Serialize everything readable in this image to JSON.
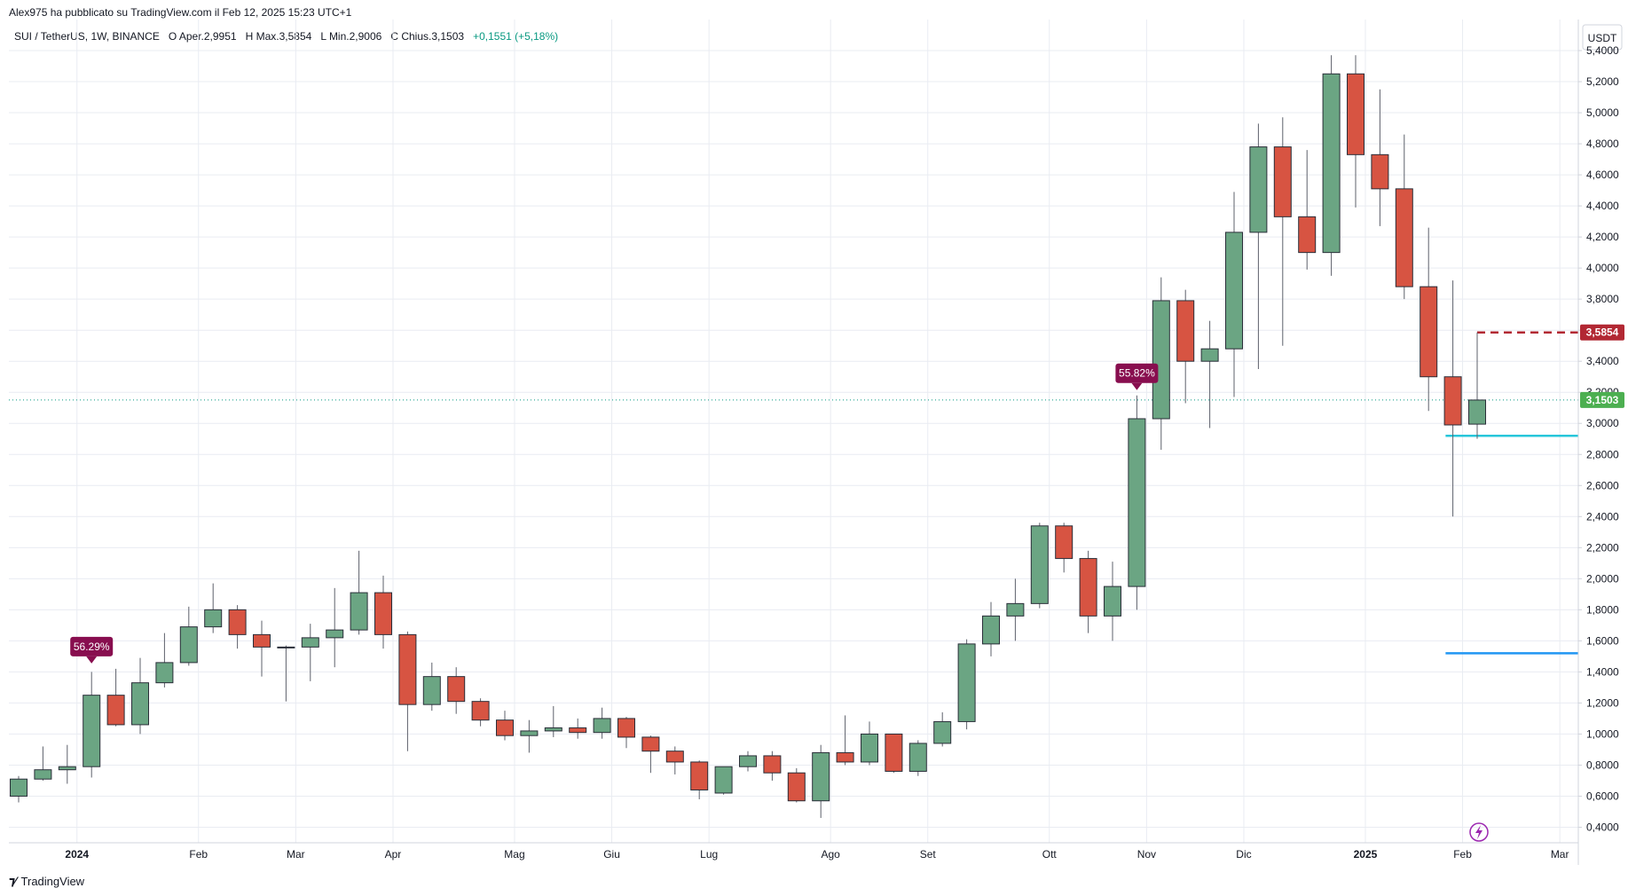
{
  "header": {
    "caption": "Alex975 ha pubblicato su TradingView.com il Feb 12, 2025 15:23 UTC+1",
    "symbol": "SUI / TetherUS, 1W, BINANCE",
    "o_label": "O",
    "o_value": "Aper.2,9951",
    "h_label": "H",
    "h_value": "Max.3,5854",
    "l_label": "L",
    "l_value": "Min.2,9006",
    "c_label": "C",
    "c_value": "Chius.3,1503",
    "change": "+0,1551 (+5,18%)"
  },
  "footer": {
    "logo_text": "TradingView"
  },
  "colors": {
    "up": "#6ba583",
    "down": "#d75442",
    "wick": "#5d606b",
    "grid": "#e9ecf2",
    "badge": "#880e4f",
    "cyan_line": "#26c6da",
    "blue_line": "#2196f3",
    "red_dash": "#b22833",
    "price_tag_up": "#4caf50"
  },
  "chart_data": {
    "type": "candlestick",
    "title": "SUI / TetherUS, 1W, BINANCE",
    "currency_label": "USDT",
    "y_ticks": [
      "0,4000",
      "0,6000",
      "0,8000",
      "1,0000",
      "1,2000",
      "1,4000",
      "1,6000",
      "1,8000",
      "2,0000",
      "2,2000",
      "2,4000",
      "2,6000",
      "2,8000",
      "3,0000",
      "3,2000",
      "3,4000",
      "3,6000",
      "3,8000",
      "4,0000",
      "4,2000",
      "4,4000",
      "4,6000",
      "4,8000",
      "5,0000",
      "5,2000",
      "5,4000"
    ],
    "y_tick_values": [
      0.4,
      0.6,
      0.8,
      1.0,
      1.2,
      1.4,
      1.6,
      1.8,
      2.0,
      2.2,
      2.4,
      2.6,
      2.8,
      3.0,
      3.2,
      3.4,
      3.6,
      3.8,
      4.0,
      4.2,
      4.4,
      4.6,
      4.8,
      5.0,
      5.2,
      5.4
    ],
    "ylim": [
      0.3,
      5.6
    ],
    "x_ticks": [
      "2024",
      "Feb",
      "Mar",
      "Apr",
      "Mag",
      "Giu",
      "Lug",
      "Ago",
      "Set",
      "Ott",
      "Nov",
      "Dic",
      "2025",
      "Feb",
      "Mar"
    ],
    "x_tick_week_index": [
      2.4,
      7.4,
      11.4,
      15.4,
      20.4,
      24.4,
      28.4,
      33.4,
      37.4,
      42.4,
      46.4,
      50.4,
      55.4,
      59.4,
      63.4
    ],
    "candles": [
      {
        "o": 0.6,
        "h": 0.73,
        "l": 0.56,
        "c": 0.71
      },
      {
        "o": 0.71,
        "h": 0.92,
        "l": 0.7,
        "c": 0.77
      },
      {
        "o": 0.77,
        "h": 0.93,
        "l": 0.68,
        "c": 0.79
      },
      {
        "o": 0.79,
        "h": 1.4,
        "l": 0.72,
        "c": 1.25
      },
      {
        "o": 1.25,
        "h": 1.42,
        "l": 1.05,
        "c": 1.06
      },
      {
        "o": 1.06,
        "h": 1.49,
        "l": 1.0,
        "c": 1.33
      },
      {
        "o": 1.33,
        "h": 1.65,
        "l": 1.3,
        "c": 1.46
      },
      {
        "o": 1.46,
        "h": 1.82,
        "l": 1.44,
        "c": 1.69
      },
      {
        "o": 1.69,
        "h": 1.97,
        "l": 1.65,
        "c": 1.8
      },
      {
        "o": 1.8,
        "h": 1.83,
        "l": 1.55,
        "c": 1.64
      },
      {
        "o": 1.64,
        "h": 1.73,
        "l": 1.37,
        "c": 1.56
      },
      {
        "o": 1.56,
        "h": 1.57,
        "l": 1.21,
        "c": 1.56
      },
      {
        "o": 1.56,
        "h": 1.71,
        "l": 1.34,
        "c": 1.62
      },
      {
        "o": 1.62,
        "h": 1.94,
        "l": 1.43,
        "c": 1.67
      },
      {
        "o": 1.67,
        "h": 2.18,
        "l": 1.64,
        "c": 1.91
      },
      {
        "o": 1.91,
        "h": 2.02,
        "l": 1.55,
        "c": 1.64
      },
      {
        "o": 1.64,
        "h": 1.66,
        "l": 0.89,
        "c": 1.19
      },
      {
        "o": 1.19,
        "h": 1.46,
        "l": 1.15,
        "c": 1.37
      },
      {
        "o": 1.37,
        "h": 1.43,
        "l": 1.13,
        "c": 1.21
      },
      {
        "o": 1.21,
        "h": 1.23,
        "l": 1.05,
        "c": 1.09
      },
      {
        "o": 1.09,
        "h": 1.15,
        "l": 0.96,
        "c": 0.99
      },
      {
        "o": 0.99,
        "h": 1.09,
        "l": 0.88,
        "c": 1.02
      },
      {
        "o": 1.02,
        "h": 1.18,
        "l": 0.98,
        "c": 1.04
      },
      {
        "o": 1.04,
        "h": 1.1,
        "l": 0.97,
        "c": 1.01
      },
      {
        "o": 1.01,
        "h": 1.17,
        "l": 0.97,
        "c": 1.1
      },
      {
        "o": 1.1,
        "h": 1.11,
        "l": 0.91,
        "c": 0.98
      },
      {
        "o": 0.98,
        "h": 0.99,
        "l": 0.75,
        "c": 0.89
      },
      {
        "o": 0.89,
        "h": 0.92,
        "l": 0.74,
        "c": 0.82
      },
      {
        "o": 0.82,
        "h": 0.83,
        "l": 0.58,
        "c": 0.64
      },
      {
        "o": 0.62,
        "h": 0.79,
        "l": 0.61,
        "c": 0.79
      },
      {
        "o": 0.79,
        "h": 0.89,
        "l": 0.76,
        "c": 0.86
      },
      {
        "o": 0.86,
        "h": 0.89,
        "l": 0.7,
        "c": 0.75
      },
      {
        "o": 0.75,
        "h": 0.78,
        "l": 0.56,
        "c": 0.57
      },
      {
        "o": 0.57,
        "h": 0.93,
        "l": 0.46,
        "c": 0.88
      },
      {
        "o": 0.88,
        "h": 1.12,
        "l": 0.8,
        "c": 0.82
      },
      {
        "o": 0.82,
        "h": 1.08,
        "l": 0.8,
        "c": 1.0
      },
      {
        "o": 1.0,
        "h": 1.0,
        "l": 0.75,
        "c": 0.76
      },
      {
        "o": 0.76,
        "h": 0.96,
        "l": 0.73,
        "c": 0.94
      },
      {
        "o": 0.94,
        "h": 1.14,
        "l": 0.92,
        "c": 1.08
      },
      {
        "o": 1.08,
        "h": 1.61,
        "l": 1.03,
        "c": 1.58
      },
      {
        "o": 1.58,
        "h": 1.85,
        "l": 1.5,
        "c": 1.76
      },
      {
        "o": 1.76,
        "h": 2.0,
        "l": 1.6,
        "c": 1.84
      },
      {
        "o": 1.84,
        "h": 2.36,
        "l": 1.81,
        "c": 2.34
      },
      {
        "o": 2.34,
        "h": 2.36,
        "l": 2.04,
        "c": 2.13
      },
      {
        "o": 2.13,
        "h": 2.18,
        "l": 1.65,
        "c": 1.76
      },
      {
        "o": 1.76,
        "h": 2.11,
        "l": 1.6,
        "c": 1.95
      },
      {
        "o": 1.95,
        "h": 3.18,
        "l": 1.8,
        "c": 3.03
      },
      {
        "o": 3.03,
        "h": 3.94,
        "l": 2.83,
        "c": 3.79
      },
      {
        "o": 3.79,
        "h": 3.86,
        "l": 3.13,
        "c": 3.4
      },
      {
        "o": 3.4,
        "h": 3.66,
        "l": 2.97,
        "c": 3.48
      },
      {
        "o": 3.48,
        "h": 4.49,
        "l": 3.17,
        "c": 4.23
      },
      {
        "o": 4.23,
        "h": 4.93,
        "l": 3.35,
        "c": 4.78
      },
      {
        "o": 4.78,
        "h": 4.97,
        "l": 3.5,
        "c": 4.33
      },
      {
        "o": 4.33,
        "h": 4.76,
        "l": 3.99,
        "c": 4.1
      },
      {
        "o": 4.1,
        "h": 5.37,
        "l": 3.95,
        "c": 5.25
      },
      {
        "o": 5.25,
        "h": 5.37,
        "l": 4.39,
        "c": 4.73
      },
      {
        "o": 4.73,
        "h": 5.15,
        "l": 4.27,
        "c": 4.51
      },
      {
        "o": 4.51,
        "h": 4.86,
        "l": 3.8,
        "c": 3.88
      },
      {
        "o": 3.88,
        "h": 4.26,
        "l": 3.08,
        "c": 3.3
      },
      {
        "o": 3.3,
        "h": 3.92,
        "l": 2.4,
        "c": 2.99
      },
      {
        "o": 2.9951,
        "h": 3.5854,
        "l": 2.9006,
        "c": 3.1503
      }
    ],
    "annotations": [
      {
        "label": "56.29%",
        "candle_index": 3,
        "value": 1.42
      },
      {
        "label": "55.82%",
        "candle_index": 46,
        "value": 3.18
      }
    ],
    "horizontal_lines": [
      {
        "value": 2.92,
        "from_candle": 58.7,
        "color": "cyan"
      },
      {
        "value": 1.52,
        "from_candle": 58.7,
        "color": "blue"
      },
      {
        "value": 3.5854,
        "from_candle": 60,
        "color": "red-dashed"
      }
    ],
    "price_tags": [
      {
        "label": "3,5854",
        "value": 3.5854,
        "kind": "high"
      },
      {
        "label": "3,1503",
        "value": 3.1503,
        "kind": "last"
      }
    ],
    "last_price_value": 3.1503
  }
}
